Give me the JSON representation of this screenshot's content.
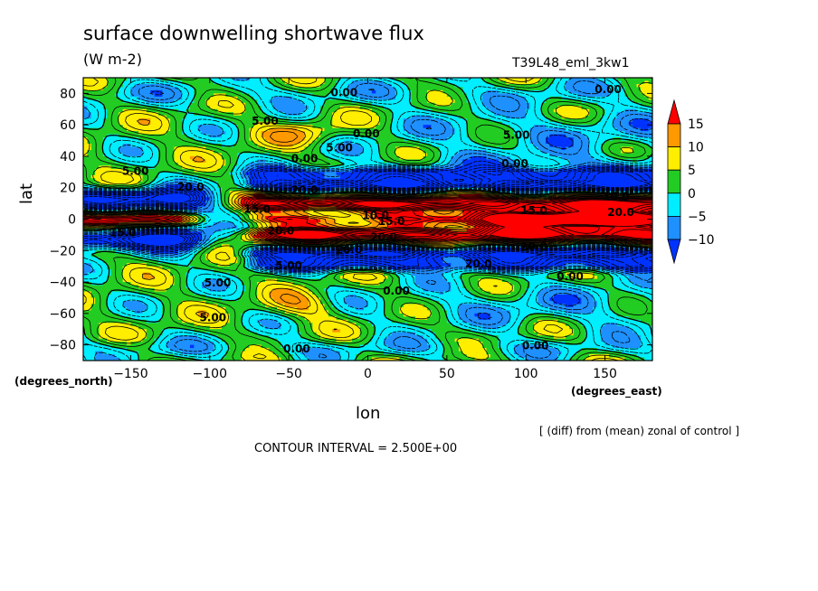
{
  "chart_data": {
    "type": "heatmap",
    "title": "surface downwelling shortwave flux",
    "units": "(W m-2)",
    "run_label": "T39L48_eml_3kw1",
    "xlabel": "lon",
    "ylabel": "lat",
    "x_unit_note": "(degrees_east)",
    "y_unit_note": "(degrees_north)",
    "subtitle_note": "[ (diff) from (mean) zonal of control ]",
    "contour_interval_text": "CONTOUR INTERVAL = 2.500E+00",
    "xlim": [
      -180,
      180
    ],
    "ylim": [
      -90,
      90
    ],
    "x_ticks": [
      -150,
      -100,
      -50,
      0,
      50,
      100,
      150
    ],
    "y_ticks": [
      80,
      60,
      40,
      20,
      0,
      -20,
      -40,
      -60,
      -80
    ],
    "x_tick_labels": [
      "−150",
      "−100",
      "−50",
      "0",
      "50",
      "100",
      "150"
    ],
    "y_tick_labels": [
      "80",
      "60",
      "40",
      "20",
      "0",
      "−20",
      "−40",
      "−60",
      "−80"
    ],
    "colorbar": {
      "levels": [
        15,
        10,
        5,
        0,
        -5,
        -10
      ],
      "labels": [
        "15",
        "10",
        "5",
        "0",
        "−5",
        "−10"
      ],
      "colors": [
        "#ff0000",
        "#ff9900",
        "#ffee00",
        "#22cc22",
        "#00eeff",
        "#1e90ff",
        "#0033ff"
      ]
    },
    "contour_labels": [
      {
        "text": "0.00",
        "lon": -15,
        "lat": 81
      },
      {
        "text": "0.00",
        "lon": 152,
        "lat": 83
      },
      {
        "text": "5.00",
        "lon": -65,
        "lat": 63
      },
      {
        "text": "0.00",
        "lon": -1,
        "lat": 55
      },
      {
        "text": "5.00",
        "lon": -18,
        "lat": 46
      },
      {
        "text": "5.00",
        "lon": 94,
        "lat": 54
      },
      {
        "text": "0.00",
        "lon": -40,
        "lat": 39
      },
      {
        "text": "0.00",
        "lon": 93,
        "lat": 36
      },
      {
        "text": "5.00",
        "lon": -147,
        "lat": 31
      },
      {
        "text": "20.0",
        "lon": -112,
        "lat": 21
      },
      {
        "text": "20.0",
        "lon": -40,
        "lat": 19
      },
      {
        "text": "15.0",
        "lon": -70,
        "lat": 7
      },
      {
        "text": "10.0",
        "lon": 5,
        "lat": 3
      },
      {
        "text": "15.0",
        "lon": 15,
        "lat": -1
      },
      {
        "text": "10.0",
        "lon": 157,
        "lat": 15
      },
      {
        "text": "15.0",
        "lon": 105,
        "lat": 6
      },
      {
        "text": "20.0",
        "lon": 160,
        "lat": 5
      },
      {
        "text": "15.0",
        "lon": -155,
        "lat": -8
      },
      {
        "text": "20.0",
        "lon": -55,
        "lat": -7
      },
      {
        "text": "20.0",
        "lon": 10,
        "lat": -11
      },
      {
        "text": "20.0",
        "lon": 105,
        "lat": -17
      },
      {
        "text": "20.0",
        "lon": -12,
        "lat": -19
      },
      {
        "text": "20.0",
        "lon": 70,
        "lat": -28
      },
      {
        "text": "5.00",
        "lon": -50,
        "lat": -29
      },
      {
        "text": "5.00",
        "lon": -95,
        "lat": -40
      },
      {
        "text": "0.00",
        "lon": 18,
        "lat": -45
      },
      {
        "text": "0.00",
        "lon": 128,
        "lat": -36
      },
      {
        "text": "5.00",
        "lon": -98,
        "lat": -62
      },
      {
        "text": "0.00",
        "lon": -45,
        "lat": -82
      },
      {
        "text": "0.00",
        "lon": 106,
        "lat": -80
      }
    ]
  }
}
